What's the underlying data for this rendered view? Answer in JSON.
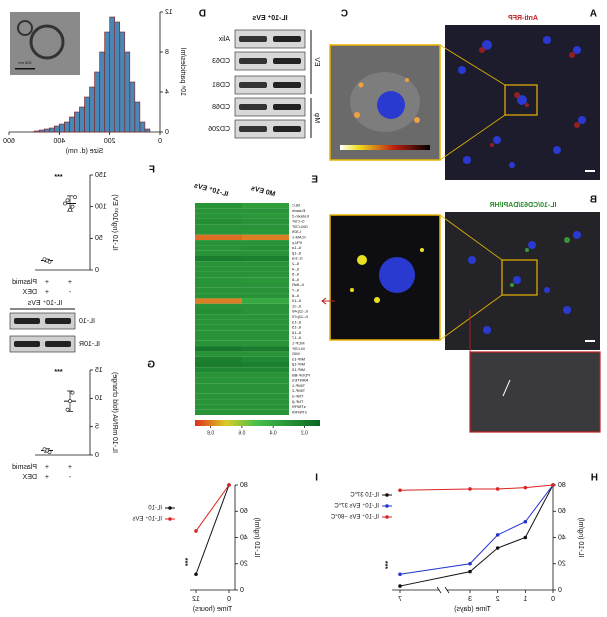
{
  "figure": {
    "panel_labels": [
      "A",
      "B",
      "C",
      "D",
      "E",
      "F",
      "G",
      "H",
      "I"
    ],
    "micrograph_titles": [
      "Anti-RFP",
      "IL-10/CD63/DAPI/HR"
    ],
    "tem_scale": "200 nm",
    "blot_d": {
      "title": "IL-10⁺ EVs",
      "bands": [
        "Alix",
        "CD63",
        "CD81",
        "CD68",
        "CD206"
      ],
      "groups": [
        "EV",
        "Mφ"
      ]
    },
    "blot_f": {
      "title": "IL-10⁺ EVs",
      "bands": [
        "IL-10",
        "IL-10R"
      ]
    }
  },
  "chart_data": [
    {
      "type": "histogram",
      "xlabel": "Size (d. nm)",
      "ylabel": "10⁸ particles/ml",
      "bins": [
        0,
        20,
        40,
        60,
        80,
        100,
        120,
        140,
        160,
        180,
        200,
        220,
        240,
        260,
        280,
        300,
        320,
        340,
        360,
        380,
        400,
        420,
        440,
        460,
        480,
        500,
        520,
        540,
        560,
        580,
        600
      ],
      "counts": [
        0,
        0,
        0.3,
        1,
        3,
        5,
        8,
        10,
        11,
        11.5,
        10,
        8,
        6,
        4.5,
        3.5,
        2.5,
        2,
        1.5,
        1,
        0.8,
        0.6,
        0.4,
        0.3,
        0.2,
        0.1,
        0,
        0,
        0,
        0,
        0
      ],
      "color": "#4a87b5",
      "xlim": [
        0,
        600
      ],
      "xticks": [
        0,
        200,
        400,
        600
      ],
      "ylim": [
        0,
        12
      ],
      "yticks": [
        0,
        4,
        8,
        12
      ]
    },
    {
      "type": "heatmap",
      "columns": [
        "M0 EVs",
        "IL-10⁺ EVs"
      ],
      "rows": [
        "BLC",
        "Eotaxin",
        "Eotaxin-2",
        "G-CSF",
        "GM-CSF",
        "I-309",
        "ICAM-1",
        "IFN-γ",
        "IL-1α",
        "IL-1β",
        "IL-1ra",
        "IL-2",
        "IL-4",
        "IL-5",
        "IL-6",
        "IL-6sR",
        "IL-7",
        "IL-8",
        "IL-10",
        "IL-11",
        "IL-12p40",
        "IL-12p70",
        "IL-13",
        "IL-15",
        "IL-16",
        "IL-17",
        "MCP-1",
        "M-CSF",
        "MIG",
        "MIP-1α",
        "MIP-1β",
        "MIP-1δ",
        "PDGF-BB",
        "RANTES",
        "TIMP-1",
        "TIMP-2",
        "TNF-α",
        "TNF-β",
        "sTNFRI",
        "sTNFRII"
      ],
      "values": [
        [
          0.35,
          0.3
        ],
        [
          0.3,
          0.3
        ],
        [
          0.32,
          0.3
        ],
        [
          0.3,
          0.28
        ],
        [
          0.3,
          0.3
        ],
        [
          0.32,
          0.3
        ],
        [
          0.8,
          0.82
        ],
        [
          0.3,
          0.3
        ],
        [
          0.28,
          0.3
        ],
        [
          0.3,
          0.3
        ],
        [
          0.22,
          0.2
        ],
        [
          0.3,
          0.3
        ],
        [
          0.3,
          0.3
        ],
        [
          0.3,
          0.3
        ],
        [
          0.32,
          0.3
        ],
        [
          0.3,
          0.3
        ],
        [
          0.3,
          0.3
        ],
        [
          0.3,
          0.3
        ],
        [
          0.4,
          0.8
        ],
        [
          0.3,
          0.3
        ],
        [
          0.3,
          0.28
        ],
        [
          0.3,
          0.3
        ],
        [
          0.3,
          0.3
        ],
        [
          0.3,
          0.3
        ],
        [
          0.3,
          0.3
        ],
        [
          0.3,
          0.3
        ],
        [
          0.3,
          0.3
        ],
        [
          0.2,
          0.18
        ],
        [
          0.3,
          0.3
        ],
        [
          0.25,
          0.22
        ],
        [
          0.22,
          0.2
        ],
        [
          0.25,
          0.25
        ],
        [
          0.3,
          0.3
        ],
        [
          0.3,
          0.3
        ],
        [
          0.3,
          0.3
        ],
        [
          0.3,
          0.3
        ],
        [
          0.3,
          0.3
        ],
        [
          0.3,
          0.3
        ],
        [
          0.3,
          0.3
        ],
        [
          0.3,
          0.3
        ]
      ],
      "zlim": [
        0.1,
        0.9
      ],
      "zticks": [
        0.2,
        0.4,
        0.6,
        0.8
      ],
      "highlight": "IL-10"
    },
    {
      "type": "dot",
      "ylabel": "IL-10 (ng/10¹⁰ EV)",
      "ylim": [
        0,
        150
      ],
      "yticks": [
        0,
        50,
        100,
        150
      ],
      "conditions": [
        {
          "name": "Plasmid",
          "values": [
            "+",
            "+"
          ]
        },
        {
          "name": "DEX",
          "values": [
            "-",
            "+"
          ]
        }
      ],
      "means": [
        105,
        15
      ],
      "errors": [
        12,
        2
      ],
      "points": [
        [
          115,
          100,
          95,
          110,
          105
        ],
        [
          13,
          15,
          17
        ]
      ],
      "annotation": "***"
    },
    {
      "type": "dot",
      "ylabel": "IL-10 mRNA (fold change)",
      "ylim": [
        0,
        15
      ],
      "yticks": [
        0,
        5,
        10,
        15
      ],
      "conditions": [
        {
          "name": "Plasmid",
          "values": [
            "+",
            "+"
          ]
        },
        {
          "name": "DEX",
          "values": [
            "-",
            "+"
          ]
        }
      ],
      "means": [
        9.5,
        0.8
      ],
      "errors": [
        1.8,
        0.3
      ],
      "points": [
        [
          11,
          9.5,
          8
        ],
        [
          0.5,
          0.8,
          1
        ]
      ],
      "annotation": "***"
    },
    {
      "type": "line",
      "xlabel": "Time (days)",
      "ylabel": "IL-10 (ng/ml)",
      "x": [
        0,
        1,
        2,
        3,
        7
      ],
      "xticks": [
        0,
        1,
        2,
        3,
        7
      ],
      "ylim": [
        0,
        80
      ],
      "yticks": [
        0,
        20,
        40,
        60,
        80
      ],
      "series": [
        {
          "name": "IL-10 37°C",
          "color": "#111111",
          "values": [
            80,
            40,
            32,
            14,
            3
          ]
        },
        {
          "name": "IL-10⁺ EVs 37°C",
          "color": "#2233cc",
          "values": [
            80,
            52,
            42,
            20,
            12
          ]
        },
        {
          "name": "IL-10⁺ EVs −80°C",
          "color": "#dd2222",
          "values": [
            80,
            78,
            77,
            77,
            76
          ]
        }
      ],
      "annotation": "***"
    },
    {
      "type": "line",
      "xlabel": "Time (hours)",
      "ylabel": "IL-10 (ng/ml)",
      "x": [
        0,
        12
      ],
      "xlim": [
        0,
        12
      ],
      "xticks": [
        0,
        12
      ],
      "ylim": [
        0,
        80
      ],
      "yticks": [
        0,
        20,
        40,
        60,
        80
      ],
      "series": [
        {
          "name": "IL-10",
          "color": "#111111",
          "values": [
            80,
            12
          ]
        },
        {
          "name": "IL-10⁺ EVs",
          "color": "#dd2222",
          "values": [
            80,
            45
          ]
        }
      ],
      "annotation": "***"
    }
  ]
}
